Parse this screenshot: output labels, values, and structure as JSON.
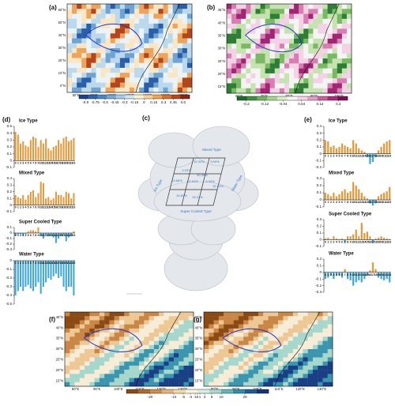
{
  "panels": {
    "a": "(a)",
    "b": "(b)",
    "c": "(c)",
    "d": "(d)",
    "e": "(e)",
    "f": "(f)",
    "g": "(g)"
  },
  "maps": [
    {
      "xlabels": [
        "60°E",
        "80°E",
        "100°E",
        "120°E",
        "140°E",
        "160°E",
        "180°E"
      ],
      "ylabels": [
        "60°N",
        "50°N",
        "40°N",
        "30°N",
        "20°N",
        "10°N",
        "0°N"
      ]
    },
    {
      "xlabels": [
        "60°E",
        "70°E",
        "80°E",
        "90°E",
        "100°E"
      ],
      "ylabels": [
        "45°N",
        "40°N",
        "35°N",
        "30°N",
        "25°N",
        "20°N",
        "15°N"
      ]
    },
    {
      "xlabels": [
        "80°E",
        "90°E",
        "100°E",
        "110°E",
        "120°E",
        "130°E"
      ],
      "ylabels": [
        "45°N",
        "40°N",
        "35°N",
        "30°N",
        "25°N",
        "20°N",
        "15°N"
      ]
    },
    {
      "xlabels": [
        "80°E",
        "90°E",
        "100°E",
        "110°E",
        "120°E",
        "130°E"
      ],
      "ylabels": [
        "45°N",
        "40°N",
        "35°N",
        "30°N",
        "25°N",
        "20°N",
        "15°N"
      ]
    }
  ],
  "cloud": {
    "types": [
      "Mixed Type",
      "Ice Type",
      "Water Type",
      "Super Cooled Type"
    ],
    "percents": [
      "10.34%",
      "9.00%",
      "4.03%",
      "50.35%",
      "13.68%",
      "22.04%",
      "5.34%",
      "32.91%",
      "33.60%",
      "15.22%"
    ]
  },
  "chart_data": [
    {
      "type": "bar",
      "title": "Ice Type",
      "categories": [
        "0",
        "1",
        "2",
        "3",
        "4",
        "5",
        "6",
        "7",
        "8",
        "9",
        "10",
        "11",
        "12",
        "13",
        "14",
        "15",
        "16",
        "17",
        "18",
        "19",
        "20",
        "21",
        "22",
        "23"
      ],
      "values": [
        0.42,
        0.38,
        0.25,
        0.28,
        0.22,
        0.2,
        0.3,
        0.35,
        0.33,
        0.2,
        0.3,
        0.25,
        0.32,
        0.18,
        0.15,
        0.2,
        0.22,
        0.3,
        0.25,
        0.33,
        0.35,
        0.28,
        0.3,
        0.33
      ],
      "ylim": [
        -0.1,
        0.5
      ],
      "yticks": [
        -0.1,
        0,
        0.1,
        0.2,
        0.3,
        0.4,
        0.5
      ],
      "pos_color": "#e39a3c",
      "neg_color": "#3ea9d9"
    },
    {
      "type": "bar",
      "title": "Mixed Type",
      "categories": [
        "0",
        "1",
        "2",
        "3",
        "4",
        "5",
        "6",
        "7",
        "8",
        "9",
        "10",
        "11",
        "12",
        "13",
        "14",
        "15",
        "16",
        "17",
        "18",
        "19",
        "20",
        "21",
        "22",
        "23"
      ],
      "values": [
        0.15,
        0.12,
        0.1,
        0.15,
        0.08,
        0.15,
        0.2,
        0.22,
        0.12,
        0.18,
        0.35,
        0.33,
        0.1,
        0.12,
        0.08,
        0.1,
        0.2,
        0.15,
        0.15,
        0.12,
        0.2,
        0.18,
        0.1,
        0.18
      ],
      "ylim": [
        -0.1,
        0.4
      ],
      "yticks": [
        -0.1,
        0,
        0.1,
        0.2,
        0.3,
        0.4
      ],
      "pos_color": "#e39a3c",
      "neg_color": "#3ea9d9"
    },
    {
      "type": "bar",
      "title": "Super Cooled Type",
      "categories": [
        "0",
        "1",
        "2",
        "3",
        "4",
        "5",
        "6",
        "7",
        "8",
        "9",
        "10",
        "11",
        "12",
        "13",
        "14",
        "15",
        "16",
        "17",
        "18",
        "19",
        "20",
        "21",
        "22",
        "23"
      ],
      "values": [
        -0.05,
        -0.03,
        -0.02,
        -0.05,
        -0.02,
        0.03,
        0.05,
        0.05,
        0.03,
        0.1,
        -0.05,
        -0.1,
        -0.03,
        -0.05,
        -0.05,
        -0.08,
        -0.18,
        -0.1,
        -0.05,
        -0.03,
        -0.15,
        -0.08,
        -0.05,
        0.03
      ],
      "ylim": [
        -0.3,
        0.1
      ],
      "yticks": [
        -0.3,
        -0.2,
        -0.1,
        0,
        0.1
      ],
      "pos_color": "#e39a3c",
      "neg_color": "#3ea9d9"
    },
    {
      "type": "bar",
      "title": "Water Type",
      "categories": [
        "0",
        "1",
        "2",
        "3",
        "4",
        "5",
        "6",
        "7",
        "8",
        "9",
        "10",
        "11",
        "12",
        "13",
        "14",
        "15",
        "16",
        "17",
        "18",
        "19",
        "20",
        "21",
        "22",
        "23"
      ],
      "values": [
        -0.4,
        -0.35,
        -0.3,
        -0.35,
        -0.3,
        -0.28,
        -0.32,
        -0.35,
        -0.3,
        -0.25,
        -0.38,
        -0.3,
        -0.25,
        -0.2,
        -0.22,
        -0.18,
        -0.15,
        -0.2,
        -0.18,
        -0.3,
        -0.35,
        -0.3,
        -0.3,
        -0.4
      ],
      "ylim": [
        -0.5,
        0
      ],
      "yticks": [
        -0.5,
        -0.4,
        -0.3,
        -0.2,
        -0.1,
        0
      ],
      "pos_color": "#e39a3c",
      "neg_color": "#3ea9d9"
    },
    {
      "type": "bar",
      "title": "Ice Type",
      "categories": [
        "0",
        "1",
        "2",
        "3",
        "4",
        "5",
        "6",
        "7",
        "8",
        "9",
        "10",
        "11",
        "12",
        "13",
        "14",
        "15",
        "16",
        "17",
        "18",
        "19",
        "20",
        "21",
        "22",
        "23"
      ],
      "values": [
        0.2,
        0.18,
        0.1,
        0.12,
        0.08,
        0.1,
        0.15,
        0.12,
        0.1,
        0.08,
        0.2,
        0.15,
        0.08,
        0.05,
        0.03,
        -0.05,
        -0.15,
        -0.12,
        -0.05,
        0.05,
        0.1,
        0.15,
        0.18,
        0.2
      ],
      "ylim": [
        -0.2,
        0.4
      ],
      "yticks": [
        -0.2,
        -0.1,
        0,
        0.1,
        0.2,
        0.3,
        0.4
      ],
      "pos_color": "#e39a3c",
      "neg_color": "#3ea9d9"
    },
    {
      "type": "bar",
      "title": "Mixed Type",
      "categories": [
        "0",
        "1",
        "2",
        "3",
        "4",
        "5",
        "6",
        "7",
        "8",
        "9",
        "10",
        "11",
        "12",
        "13",
        "14",
        "15",
        "16",
        "17",
        "18",
        "19",
        "20",
        "21",
        "22",
        "23"
      ],
      "values": [
        0.1,
        0.08,
        0.05,
        0.1,
        0.05,
        0.08,
        0.12,
        0.15,
        0.1,
        0.12,
        0.25,
        0.2,
        0.15,
        0.1,
        0.05,
        0.02,
        -0.05,
        -0.08,
        -0.05,
        0.05,
        0.08,
        0.1,
        0.12,
        0.18
      ],
      "ylim": [
        -0.1,
        0.3
      ],
      "yticks": [
        -0.1,
        0,
        0.1,
        0.2,
        0.3
      ],
      "pos_color": "#e39a3c",
      "neg_color": "#3ea9d9"
    },
    {
      "type": "bar",
      "title": "Super Cooled Type",
      "categories": [
        "0",
        "1",
        "2",
        "3",
        "4",
        "5",
        "6",
        "7",
        "8",
        "9",
        "10",
        "11",
        "12",
        "13",
        "14",
        "15",
        "16",
        "17",
        "18",
        "19",
        "20",
        "21",
        "22",
        "23"
      ],
      "values": [
        0.02,
        0.03,
        0.01,
        0.05,
        0.02,
        0.01,
        0.02,
        -0.05,
        0.05,
        0.05,
        0.08,
        0.15,
        0.05,
        0.25,
        0.1,
        0.12,
        0.05,
        -0.05,
        0.02,
        0.03,
        0.05,
        0.03,
        0.02,
        0.01
      ],
      "ylim": [
        -0.1,
        0.3
      ],
      "yticks": [
        -0.1,
        0,
        0.1,
        0.2,
        0.3
      ],
      "pos_color": "#e39a3c",
      "neg_color": "#3ea9d9"
    },
    {
      "type": "bar",
      "title": "Water Type",
      "categories": [
        "0",
        "1",
        "2",
        "3",
        "4",
        "5",
        "6",
        "7",
        "8",
        "9",
        "10",
        "11",
        "12",
        "13",
        "14",
        "15",
        "16",
        "17",
        "18",
        "19",
        "20",
        "21",
        "22",
        "23"
      ],
      "values": [
        -0.1,
        -0.08,
        -0.05,
        -0.1,
        -0.05,
        -0.05,
        -0.08,
        0.05,
        -0.1,
        -0.12,
        -0.2,
        -0.15,
        -0.12,
        -0.15,
        -0.1,
        -0.05,
        0.03,
        0.15,
        0.05,
        -0.08,
        -0.1,
        -0.12,
        -0.1,
        -0.15
      ],
      "ylim": [
        -0.3,
        0.2
      ],
      "yticks": [
        -0.3,
        -0.2,
        -0.1,
        0,
        0.1,
        0.2
      ],
      "pos_color": "#e39a3c",
      "neg_color": "#3ea9d9"
    },
    {
      "type": "colorbar",
      "xlim": [
        -1,
        0.7
      ],
      "xticks": [
        -0.9,
        -0.75,
        -0.6,
        -0.45,
        -0.3,
        -0.15,
        0,
        0.15,
        0.3,
        0.45,
        0.6
      ],
      "colors": [
        "#1c3f8f",
        "#2f62b0",
        "#4a86c6",
        "#74aad8",
        "#a3cbe6",
        "#d2e6f2",
        "#fdf2d0",
        "#f8d090",
        "#eea454",
        "#d9712c",
        "#b9451d",
        "#8c2315"
      ]
    },
    {
      "type": "colorbar",
      "xlim": [
        -0.24,
        0.24
      ],
      "xticks": [
        -0.2,
        -0.12,
        -0.04,
        0.04,
        0.12,
        0.2
      ],
      "colors": [
        "#1b6e2a",
        "#3f9240",
        "#72b55d",
        "#a9d38c",
        "#d8ecc4",
        "#f6f6f6",
        "#f3d4e6",
        "#e3a0c6",
        "#cd609f",
        "#b02a7a",
        "#7f0f55"
      ]
    },
    {
      "type": "colorbar",
      "xlim": [
        -30,
        30
      ],
      "xticks": [
        -20,
        -10,
        -6,
        -3,
        -1,
        0,
        1,
        3,
        6,
        10,
        20
      ],
      "colors": [
        "#8a4a14",
        "#b06a2a",
        "#cf8f4a",
        "#e6b47a",
        "#f3d8a8",
        "#fbf2dc",
        "#d8ede6",
        "#a9d9cf",
        "#63b8b3",
        "#2e8fa8",
        "#1b5e98",
        "#14337a"
      ]
    }
  ]
}
